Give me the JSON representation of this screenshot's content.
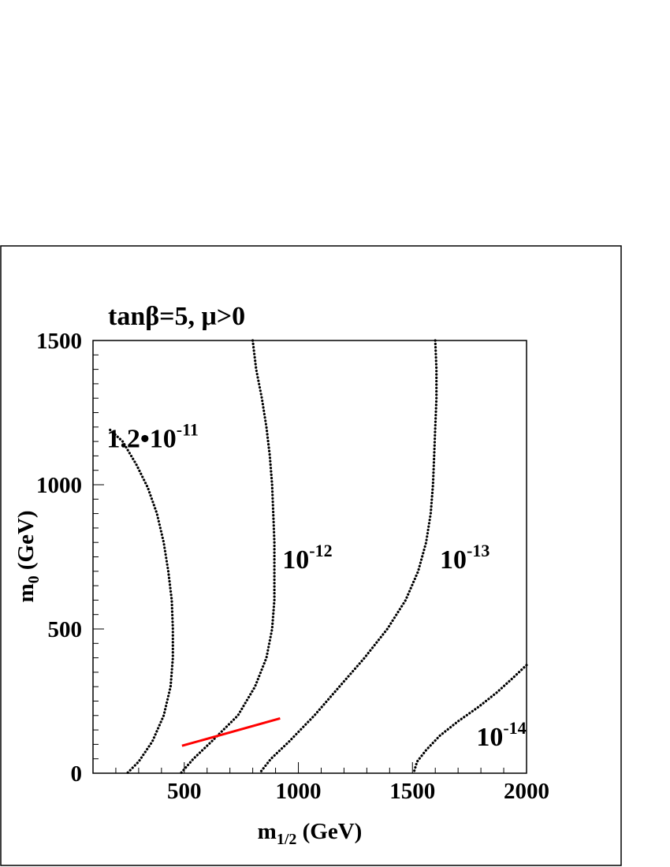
{
  "chart_data": {
    "type": "line",
    "title": "tanβ=5, μ>0",
    "xlabel": {
      "main": "m",
      "sub": "1/2",
      "unit": " (GeV)"
    },
    "ylabel": {
      "main": "m",
      "sub": "0",
      "unit": " (GeV)"
    },
    "xlim": [
      100,
      2000
    ],
    "ylim": [
      0,
      1500
    ],
    "xticks": [
      500,
      1000,
      1500,
      2000
    ],
    "yticks": [
      0,
      500,
      1000,
      1500
    ],
    "grid": false,
    "contours": [
      {
        "name": "1.2•10^-11",
        "label": {
          "base": "1.2•10",
          "exp": "-11",
          "at": [
            160,
            1130
          ]
        },
        "style": "dotted",
        "points": [
          [
            175,
            1190
          ],
          [
            230,
            1150
          ],
          [
            290,
            1070
          ],
          [
            340,
            990
          ],
          [
            380,
            900
          ],
          [
            410,
            800
          ],
          [
            430,
            700
          ],
          [
            445,
            600
          ],
          [
            450,
            500
          ],
          [
            450,
            400
          ],
          [
            440,
            300
          ],
          [
            410,
            200
          ],
          [
            360,
            110
          ],
          [
            300,
            40
          ],
          [
            250,
            0
          ]
        ]
      },
      {
        "name": "10^-12",
        "label": {
          "base": "10",
          "exp": "-12",
          "at": [
            930,
            710
          ]
        },
        "style": "dotted",
        "points": [
          [
            800,
            1500
          ],
          [
            815,
            1400
          ],
          [
            840,
            1300
          ],
          [
            860,
            1200
          ],
          [
            875,
            1100
          ],
          [
            885,
            1000
          ],
          [
            890,
            900
          ],
          [
            895,
            800
          ],
          [
            895,
            700
          ],
          [
            895,
            600
          ],
          [
            885,
            500
          ],
          [
            860,
            400
          ],
          [
            810,
            300
          ],
          [
            735,
            200
          ],
          [
            620,
            110
          ],
          [
            540,
            50
          ],
          [
            485,
            0
          ]
        ]
      },
      {
        "name": "10^-13",
        "label": {
          "base": "10",
          "exp": "-13",
          "at": [
            1620,
            710
          ]
        },
        "style": "dotted",
        "points": [
          [
            1600,
            1500
          ],
          [
            1605,
            1400
          ],
          [
            1605,
            1300
          ],
          [
            1600,
            1200
          ],
          [
            1595,
            1100
          ],
          [
            1590,
            1000
          ],
          [
            1580,
            900
          ],
          [
            1560,
            800
          ],
          [
            1525,
            700
          ],
          [
            1470,
            600
          ],
          [
            1390,
            500
          ],
          [
            1290,
            400
          ],
          [
            1180,
            300
          ],
          [
            1070,
            200
          ],
          [
            960,
            110
          ],
          [
            880,
            50
          ],
          [
            830,
            0
          ]
        ]
      },
      {
        "name": "10^-14",
        "label": {
          "base": "10",
          "exp": "-14",
          "at": [
            1780,
            95
          ]
        },
        "style": "dotted",
        "points": [
          [
            2000,
            375
          ],
          [
            1940,
            330
          ],
          [
            1870,
            280
          ],
          [
            1790,
            230
          ],
          [
            1700,
            180
          ],
          [
            1620,
            130
          ],
          [
            1560,
            80
          ],
          [
            1520,
            40
          ],
          [
            1505,
            0
          ]
        ]
      }
    ],
    "segments": [
      {
        "name": "red-line",
        "color": "#ff0000",
        "points": [
          [
            490,
            95
          ],
          [
            920,
            190
          ]
        ]
      }
    ]
  }
}
